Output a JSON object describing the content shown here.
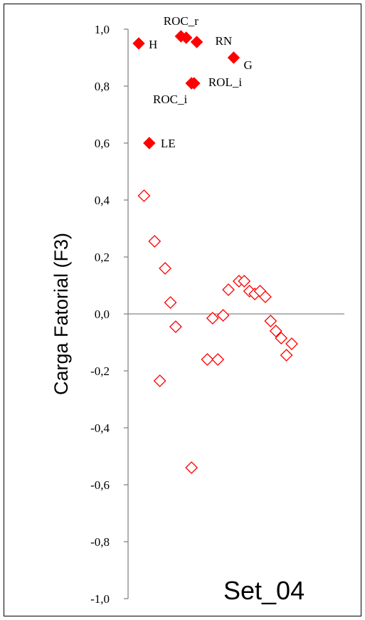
{
  "chart_data": {
    "type": "scatter",
    "ylabel": "Carga Fatorial (F3)",
    "ylim": [
      -1.0,
      1.0
    ],
    "yticks": [
      "-1,0",
      "-0,8",
      "-0,6",
      "-0,4",
      "-0,2",
      "0,0",
      "0,2",
      "0,4",
      "0,6",
      "0,8",
      "1,0"
    ],
    "ytick_values": [
      -1.0,
      -0.8,
      -0.6,
      -0.4,
      -0.2,
      0.0,
      0.2,
      0.4,
      0.6,
      0.8,
      1.0
    ],
    "xlim": [
      0,
      30
    ],
    "panel_label": "Set_04",
    "grid": false,
    "marker_color": "#ff0000",
    "series": [
      {
        "marker": "filled-diamond",
        "points": [
          {
            "x": 1,
            "y": 0.95,
            "label": "H"
          },
          {
            "x": 3,
            "y": 0.6,
            "label": "LE"
          },
          {
            "x": 9,
            "y": 0.975,
            "label": "ROC_r"
          },
          {
            "x": 10,
            "y": 0.97,
            "label": ""
          },
          {
            "x": 11,
            "y": 0.81,
            "label": "ROC_i"
          },
          {
            "x": 12,
            "y": 0.955,
            "label": "RN"
          },
          {
            "x": 19,
            "y": 0.9,
            "label": "G"
          },
          {
            "x": 11.5,
            "y": 0.81,
            "label": "ROL_i"
          }
        ]
      },
      {
        "marker": "open-diamond",
        "points": [
          {
            "x": 2,
            "y": 0.415
          },
          {
            "x": 4,
            "y": 0.255
          },
          {
            "x": 5,
            "y": -0.235
          },
          {
            "x": 6,
            "y": 0.16
          },
          {
            "x": 7,
            "y": 0.04
          },
          {
            "x": 8,
            "y": -0.045
          },
          {
            "x": 11,
            "y": -0.54
          },
          {
            "x": 14,
            "y": -0.16
          },
          {
            "x": 15,
            "y": -0.015
          },
          {
            "x": 16,
            "y": -0.16
          },
          {
            "x": 17,
            "y": -0.005
          },
          {
            "x": 18,
            "y": 0.085
          },
          {
            "x": 20,
            "y": 0.115
          },
          {
            "x": 21,
            "y": 0.115
          },
          {
            "x": 22,
            "y": 0.08
          },
          {
            "x": 23,
            "y": 0.07
          },
          {
            "x": 24,
            "y": 0.08
          },
          {
            "x": 25,
            "y": 0.06
          },
          {
            "x": 26,
            "y": -0.025
          },
          {
            "x": 27,
            "y": -0.06
          },
          {
            "x": 28,
            "y": -0.085
          },
          {
            "x": 29,
            "y": -0.145
          },
          {
            "x": 30,
            "y": -0.105
          }
        ]
      }
    ]
  }
}
